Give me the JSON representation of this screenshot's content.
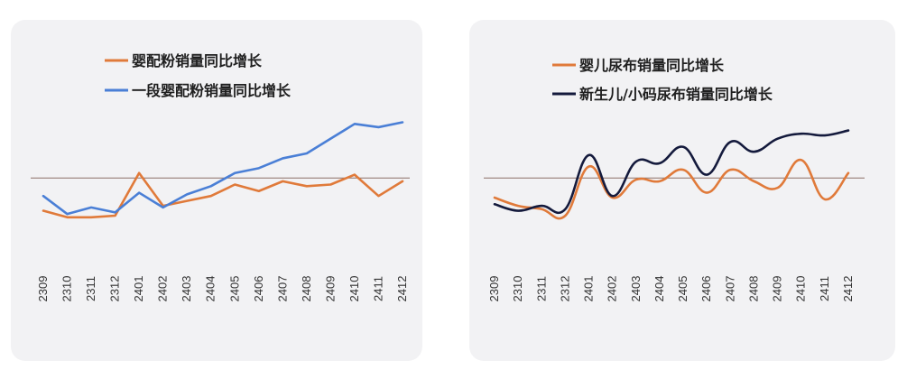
{
  "chart_data": [
    {
      "type": "line",
      "title": "",
      "xlabel": "",
      "ylabel": "",
      "x": [
        "2309",
        "2310",
        "2311",
        "2312",
        "2401",
        "2402",
        "2403",
        "2404",
        "2405",
        "2406",
        "2407",
        "2408",
        "2409",
        "2410",
        "2411",
        "2412"
      ],
      "ylim": [
        -5,
        8
      ],
      "reference_line": 0,
      "grid": false,
      "legend_position": "top-left",
      "series": [
        {
          "name": "婴配粉销量同比增长",
          "color": "#e07a3a",
          "values": [
            -2.0,
            -2.4,
            -2.4,
            -2.3,
            0.3,
            -1.7,
            -1.4,
            -1.1,
            -0.4,
            -0.8,
            -0.2,
            -0.5,
            -0.4,
            0.2,
            -1.1,
            -0.2
          ]
        },
        {
          "name": "一段婴配粉销量同比增长",
          "color": "#4a7fd6",
          "values": [
            -1.1,
            -2.2,
            -1.8,
            -2.1,
            -0.9,
            -1.8,
            -1.0,
            -0.5,
            0.3,
            0.6,
            1.2,
            1.5,
            2.4,
            3.3,
            3.1,
            3.4
          ]
        }
      ]
    },
    {
      "type": "line",
      "title": "",
      "xlabel": "",
      "ylabel": "",
      "x": [
        "2309",
        "2310",
        "2311",
        "2312",
        "2401",
        "2402",
        "2403",
        "2404",
        "2405",
        "2406",
        "2407",
        "2408",
        "2409",
        "2410",
        "2411",
        "2412"
      ],
      "ylim": [
        -5,
        8
      ],
      "reference_line": 0,
      "grid": false,
      "legend_position": "top-left",
      "series": [
        {
          "name": "婴儿尿布销量同比增长",
          "color": "#e07a3a",
          "values": [
            -1.2,
            -1.7,
            -1.9,
            -2.3,
            0.7,
            -1.2,
            -0.1,
            -0.2,
            0.5,
            -0.9,
            0.5,
            -0.2,
            -0.6,
            1.1,
            -1.3,
            0.3
          ]
        },
        {
          "name": "新生儿/小码尿布销量同比增长",
          "color": "#141a3c",
          "values": [
            -1.6,
            -2.0,
            -1.7,
            -1.9,
            1.4,
            -1.1,
            1.0,
            0.9,
            1.9,
            0.2,
            2.2,
            1.6,
            2.4,
            2.7,
            2.6,
            2.9
          ]
        }
      ]
    }
  ]
}
